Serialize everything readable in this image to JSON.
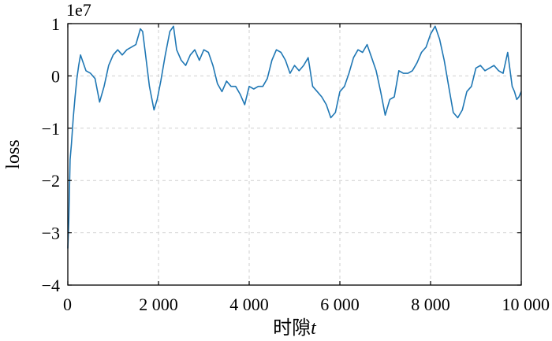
{
  "chart_data": {
    "type": "line",
    "xlabel": "时隙",
    "xlabel_var": "t",
    "ylabel": "loss",
    "offset_text": "1e7",
    "xlim": [
      0,
      10000
    ],
    "ylim": [
      -4,
      1
    ],
    "xticks": [
      0,
      2000,
      4000,
      6000,
      8000,
      10000
    ],
    "xtick_labels": [
      "0",
      "2 000",
      "4 000",
      "6 000",
      "8 000",
      "10 000"
    ],
    "yticks": [
      -4,
      -3,
      -2,
      -1,
      0,
      1
    ],
    "ytick_labels": [
      "−4",
      "−3",
      "−2",
      "−1",
      "0",
      "1"
    ],
    "grid": true,
    "line_color": "#1f77b4",
    "series": [
      {
        "x": [
          0,
          20,
          50,
          80,
          120,
          160,
          200,
          240,
          280,
          320,
          400,
          500,
          600,
          700,
          800,
          900,
          1000,
          1100,
          1200,
          1300,
          1400,
          1500,
          1600,
          1650,
          1700,
          1800,
          1900,
          1970,
          2050,
          2150,
          2250,
          2330,
          2400,
          2500,
          2600,
          2700,
          2800,
          2900,
          3000,
          3100,
          3200,
          3300,
          3400,
          3500,
          3600,
          3700,
          3800,
          3900,
          4000,
          4100,
          4200,
          4300,
          4400,
          4500,
          4600,
          4700,
          4800,
          4900,
          5000,
          5100,
          5200,
          5300,
          5400,
          5500,
          5600,
          5700,
          5800,
          5900,
          6000,
          6100,
          6200,
          6300,
          6400,
          6500,
          6600,
          6700,
          6800,
          6900,
          7000,
          7100,
          7200,
          7300,
          7400,
          7500,
          7600,
          7700,
          7800,
          7900,
          8000,
          8100,
          8200,
          8300,
          8400,
          8500,
          8600,
          8700,
          8800,
          8900,
          9000,
          9100,
          9200,
          9300,
          9400,
          9500,
          9600,
          9700,
          9800,
          9850,
          9900,
          9950,
          10000
        ],
        "y": [
          -3.3,
          -2.8,
          -1.6,
          -1.3,
          -0.8,
          -0.4,
          -0.05,
          0.2,
          0.4,
          0.3,
          0.1,
          0.05,
          -0.05,
          -0.5,
          -0.2,
          0.2,
          0.4,
          0.5,
          0.4,
          0.5,
          0.55,
          0.6,
          0.9,
          0.85,
          0.5,
          -0.2,
          -0.65,
          -0.45,
          -0.1,
          0.4,
          0.85,
          0.95,
          0.5,
          0.3,
          0.2,
          0.4,
          0.5,
          0.3,
          0.5,
          0.45,
          0.2,
          -0.15,
          -0.3,
          -0.1,
          -0.2,
          -0.2,
          -0.35,
          -0.55,
          -0.2,
          -0.25,
          -0.2,
          -0.2,
          -0.05,
          0.3,
          0.5,
          0.45,
          0.3,
          0.05,
          0.2,
          0.1,
          0.2,
          0.35,
          -0.2,
          -0.3,
          -0.4,
          -0.55,
          -0.8,
          -0.7,
          -0.3,
          -0.2,
          0.05,
          0.35,
          0.5,
          0.45,
          0.6,
          0.35,
          0.1,
          -0.3,
          -0.75,
          -0.45,
          -0.4,
          0.1,
          0.05,
          0.05,
          0.1,
          0.25,
          0.45,
          0.55,
          0.8,
          0.95,
          0.7,
          0.3,
          -0.2,
          -0.7,
          -0.8,
          -0.65,
          -0.3,
          -0.2,
          0.15,
          0.2,
          0.1,
          0.15,
          0.2,
          0.1,
          0.05,
          0.45,
          -0.2,
          -0.3,
          -0.45,
          -0.4,
          -0.3
        ]
      }
    ]
  }
}
